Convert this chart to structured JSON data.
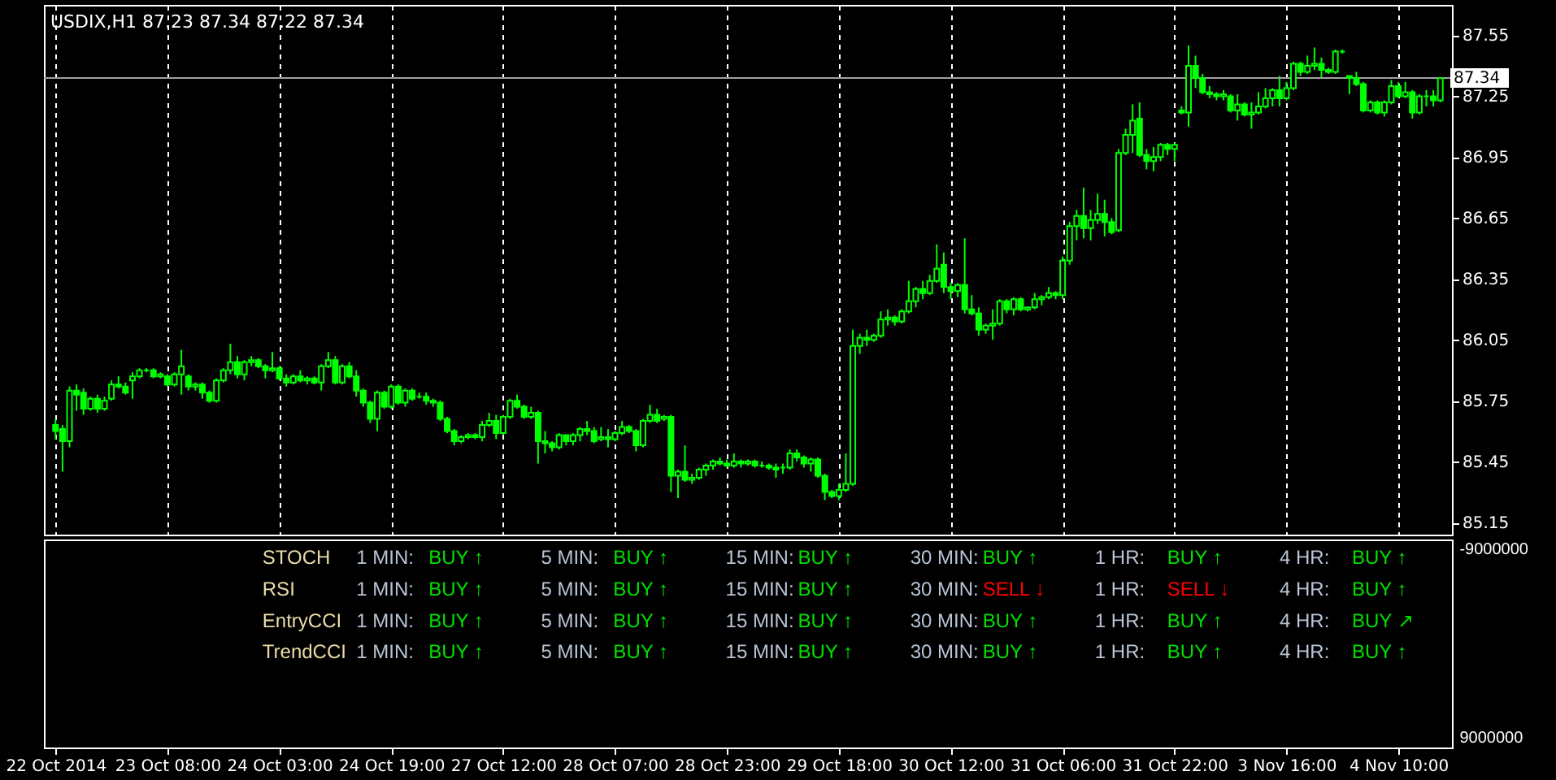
{
  "chart_data": [
    {
      "type": "candlestick",
      "title": "USDIX,H1  87.23 87.34 87.22 87.34",
      "color": "#00ff00",
      "grid": "x",
      "tick_labels": "y",
      "categories": [
        "22 Oct 2014",
        null,
        null,
        null,
        null,
        null,
        null,
        null,
        null,
        null,
        null,
        null,
        null,
        null,
        null,
        null,
        "23 Oct 08:00",
        null,
        null,
        null,
        null,
        null,
        null,
        null,
        null,
        null,
        null,
        null,
        null,
        null,
        null,
        null,
        "24 Oct 03:00",
        null,
        null,
        null,
        null,
        null,
        null,
        null,
        null,
        null,
        null,
        null,
        null,
        null,
        null,
        null,
        "24 Oct 19:00",
        null,
        null,
        null,
        null,
        null,
        null,
        null,
        null,
        null,
        null,
        null,
        null,
        null,
        null,
        null,
        "27 Oct 12:00",
        null,
        null,
        null,
        null,
        null,
        null,
        null,
        null,
        null,
        null,
        null,
        null,
        null,
        null,
        null,
        "28 Oct 07:00",
        null,
        null,
        null,
        null,
        null,
        null,
        null,
        null,
        null,
        null,
        null,
        null,
        null,
        null,
        null,
        "28 Oct 23:00",
        null,
        null,
        null,
        null,
        null,
        null,
        null,
        null,
        null,
        null,
        null,
        null,
        null,
        null,
        null,
        "29 Oct 18:00",
        null,
        null,
        null,
        null,
        null,
        null,
        null,
        null,
        null,
        null,
        null,
        null,
        null,
        null,
        null,
        "30 Oct 12:00",
        null,
        null,
        null,
        null,
        null,
        null,
        null,
        null,
        null,
        null,
        null,
        null,
        null,
        null,
        null,
        "31 Oct 06:00",
        null,
        null,
        null,
        null,
        null,
        null,
        null,
        null,
        null,
        null,
        null,
        null,
        null,
        null,
        null,
        "31 Oct 22:00",
        null,
        null,
        null,
        null,
        null,
        null,
        null,
        null,
        null,
        null,
        null,
        null,
        null,
        null,
        null,
        "3 Nov 16:00",
        null,
        null,
        null,
        null,
        null,
        null,
        null,
        null,
        null,
        null,
        null,
        null,
        null,
        null,
        null,
        "4 Nov 10:00",
        null,
        null,
        null,
        null,
        null,
        null
      ],
      "ohlc": [
        [
          85.63,
          85.66,
          85.56,
          85.6
        ],
        [
          85.61,
          85.63,
          85.4,
          85.55
        ],
        [
          85.55,
          85.82,
          85.52,
          85.8
        ],
        [
          85.8,
          85.83,
          85.7,
          85.78
        ],
        [
          85.79,
          85.81,
          85.68,
          85.71
        ],
        [
          85.71,
          85.77,
          85.7,
          85.76
        ],
        [
          85.76,
          85.78,
          85.69,
          85.71
        ],
        [
          85.71,
          85.77,
          85.7,
          85.75
        ],
        [
          85.76,
          85.85,
          85.75,
          85.83
        ],
        [
          85.83,
          85.87,
          85.81,
          85.82
        ],
        [
          85.82,
          85.84,
          85.78,
          85.79
        ],
        [
          85.85,
          85.89,
          85.76,
          85.87
        ],
        [
          85.87,
          85.91,
          85.86,
          85.9
        ],
        [
          85.9,
          85.91,
          85.89,
          85.9
        ],
        [
          85.9,
          85.91,
          85.86,
          85.87
        ],
        [
          85.87,
          85.89,
          85.86,
          85.88
        ],
        [
          85.87,
          85.88,
          85.82,
          85.83
        ],
        [
          85.83,
          85.89,
          85.82,
          85.88
        ],
        [
          85.88,
          86.0,
          85.78,
          85.92
        ],
        [
          85.87,
          85.88,
          85.8,
          85.82
        ],
        [
          85.82,
          85.84,
          85.8,
          85.83
        ],
        [
          85.83,
          85.84,
          85.76,
          85.79
        ],
        [
          85.79,
          85.8,
          85.74,
          85.75
        ],
        [
          85.75,
          85.86,
          85.74,
          85.85
        ],
        [
          85.85,
          85.91,
          85.84,
          85.9
        ],
        [
          85.9,
          86.03,
          85.88,
          85.94
        ],
        [
          85.94,
          85.97,
          85.86,
          85.88
        ],
        [
          85.88,
          85.95,
          85.85,
          85.94
        ],
        [
          85.94,
          85.97,
          85.92,
          85.95
        ],
        [
          85.95,
          85.96,
          85.91,
          85.92
        ],
        [
          85.92,
          85.93,
          85.86,
          85.9
        ],
        [
          85.9,
          85.99,
          85.89,
          85.91
        ],
        [
          85.91,
          85.92,
          85.85,
          85.86
        ],
        [
          85.86,
          85.88,
          85.82,
          85.84
        ],
        [
          85.84,
          85.88,
          85.83,
          85.87
        ],
        [
          85.87,
          85.9,
          85.84,
          85.85
        ],
        [
          85.85,
          85.87,
          85.83,
          85.86
        ],
        [
          85.86,
          85.87,
          85.83,
          85.84
        ],
        [
          85.84,
          85.93,
          85.8,
          85.92
        ],
        [
          85.92,
          85.99,
          85.91,
          85.95
        ],
        [
          85.95,
          85.97,
          85.83,
          85.84
        ],
        [
          85.84,
          85.93,
          85.83,
          85.92
        ],
        [
          85.92,
          85.94,
          85.86,
          85.87
        ],
        [
          85.87,
          85.9,
          85.77,
          85.8
        ],
        [
          85.8,
          85.81,
          85.72,
          85.74
        ],
        [
          85.74,
          85.75,
          85.64,
          85.66
        ],
        [
          85.66,
          85.8,
          85.6,
          85.79
        ],
        [
          85.79,
          85.8,
          85.71,
          85.72
        ],
        [
          85.72,
          85.83,
          85.71,
          85.82
        ],
        [
          85.82,
          85.83,
          85.73,
          85.74
        ],
        [
          85.74,
          85.81,
          85.72,
          85.8
        ],
        [
          85.8,
          85.81,
          85.75,
          85.76
        ],
        [
          85.77,
          85.79,
          85.76,
          85.77
        ],
        [
          85.77,
          85.79,
          85.73,
          85.75
        ],
        [
          85.75,
          85.76,
          85.72,
          85.74
        ],
        [
          85.74,
          85.75,
          85.65,
          85.66
        ],
        [
          85.66,
          85.67,
          85.59,
          85.6
        ],
        [
          85.6,
          85.61,
          85.53,
          85.55
        ],
        [
          85.55,
          85.58,
          85.54,
          85.57
        ],
        [
          85.57,
          85.59,
          85.56,
          85.58
        ],
        [
          85.58,
          85.59,
          85.56,
          85.57
        ],
        [
          85.57,
          85.65,
          85.55,
          85.63
        ],
        [
          85.63,
          85.69,
          85.62,
          85.65
        ],
        [
          85.65,
          85.68,
          85.56,
          85.59
        ],
        [
          85.59,
          85.68,
          85.58,
          85.67
        ],
        [
          85.67,
          85.76,
          85.66,
          85.75
        ],
        [
          85.75,
          85.78,
          85.71,
          85.72
        ],
        [
          85.72,
          85.73,
          85.66,
          85.67
        ],
        [
          85.67,
          85.72,
          85.66,
          85.69
        ],
        [
          85.69,
          85.7,
          85.44,
          85.55
        ],
        [
          85.55,
          85.6,
          85.49,
          85.54
        ],
        [
          85.54,
          85.55,
          85.5,
          85.52
        ],
        [
          85.52,
          85.59,
          85.51,
          85.58
        ],
        [
          85.58,
          85.58,
          85.53,
          85.55
        ],
        [
          85.55,
          85.59,
          85.53,
          85.58
        ],
        [
          85.58,
          85.62,
          85.55,
          85.61
        ],
        [
          85.61,
          85.65,
          85.58,
          85.6
        ],
        [
          85.6,
          85.62,
          85.54,
          85.55
        ],
        [
          85.56,
          85.62,
          85.55,
          85.57
        ],
        [
          85.57,
          85.61,
          85.52,
          85.56
        ],
        [
          85.56,
          85.6,
          85.55,
          85.59
        ],
        [
          85.59,
          85.65,
          85.58,
          85.62
        ],
        [
          85.62,
          85.63,
          85.59,
          85.6
        ],
        [
          85.6,
          85.61,
          85.5,
          85.53
        ],
        [
          85.53,
          85.66,
          85.52,
          85.65
        ],
        [
          85.65,
          85.73,
          85.64,
          85.68
        ],
        [
          85.68,
          85.71,
          85.64,
          85.65
        ],
        [
          85.66,
          85.68,
          85.65,
          85.67
        ],
        [
          85.67,
          85.68,
          85.3,
          85.38
        ],
        [
          85.38,
          85.41,
          85.27,
          85.4
        ],
        [
          85.4,
          85.53,
          85.35,
          85.36
        ],
        [
          85.36,
          85.39,
          85.34,
          85.37
        ],
        [
          85.37,
          85.42,
          85.36,
          85.41
        ],
        [
          85.41,
          85.44,
          85.38,
          85.43
        ],
        [
          85.43,
          85.46,
          85.41,
          85.45
        ],
        [
          85.45,
          85.47,
          85.43,
          85.44
        ],
        [
          85.44,
          85.46,
          85.42,
          85.43
        ],
        [
          85.43,
          85.49,
          85.42,
          85.45
        ],
        [
          85.45,
          85.46,
          85.42,
          85.44
        ],
        [
          85.44,
          85.46,
          85.43,
          85.45
        ],
        [
          85.45,
          85.46,
          85.42,
          85.43
        ],
        [
          85.43,
          85.45,
          85.42,
          85.43
        ],
        [
          85.43,
          85.44,
          85.41,
          85.42
        ],
        [
          85.42,
          85.44,
          85.37,
          85.41
        ],
        [
          85.42,
          85.44,
          85.39,
          85.42
        ],
        [
          85.42,
          85.51,
          85.41,
          85.49
        ],
        [
          85.49,
          85.51,
          85.45,
          85.47
        ],
        [
          85.47,
          85.48,
          85.42,
          85.44
        ],
        [
          85.44,
          85.47,
          85.4,
          85.46
        ],
        [
          85.46,
          85.47,
          85.37,
          85.38
        ],
        [
          85.38,
          85.39,
          85.26,
          85.3
        ],
        [
          85.3,
          85.31,
          85.27,
          85.28
        ],
        [
          85.28,
          85.34,
          85.26,
          85.31
        ],
        [
          85.31,
          85.49,
          85.3,
          85.34
        ],
        [
          85.34,
          86.1,
          85.33,
          86.02
        ],
        [
          86.02,
          86.08,
          85.98,
          86.06
        ],
        [
          86.06,
          86.1,
          86.02,
          86.05
        ],
        [
          86.05,
          86.08,
          86.04,
          86.07
        ],
        [
          86.07,
          86.19,
          86.06,
          86.15
        ],
        [
          86.15,
          86.2,
          86.12,
          86.16
        ],
        [
          86.16,
          86.17,
          86.12,
          86.14
        ],
        [
          86.14,
          86.2,
          86.13,
          86.19
        ],
        [
          86.19,
          86.34,
          86.18,
          86.24
        ],
        [
          86.24,
          86.31,
          86.21,
          86.3
        ],
        [
          86.3,
          86.34,
          86.25,
          86.28
        ],
        [
          86.28,
          86.37,
          86.27,
          86.34
        ],
        [
          86.34,
          86.52,
          86.33,
          86.4
        ],
        [
          86.42,
          86.48,
          86.28,
          86.31
        ],
        [
          86.31,
          86.33,
          86.25,
          86.29
        ],
        [
          86.29,
          86.33,
          86.26,
          86.32
        ],
        [
          86.32,
          86.55,
          86.18,
          86.2
        ],
        [
          86.2,
          86.27,
          86.17,
          86.18
        ],
        [
          86.18,
          86.21,
          86.07,
          86.1
        ],
        [
          86.1,
          86.13,
          86.08,
          86.12
        ],
        [
          86.12,
          86.2,
          86.05,
          86.13
        ],
        [
          86.13,
          86.25,
          86.12,
          86.24
        ],
        [
          86.24,
          86.25,
          86.18,
          86.2
        ],
        [
          86.2,
          86.26,
          86.17,
          86.25
        ],
        [
          86.25,
          86.26,
          86.19,
          86.2
        ],
        [
          86.2,
          86.21,
          86.19,
          86.21
        ],
        [
          86.21,
          86.28,
          86.2,
          86.25
        ],
        [
          86.25,
          86.27,
          86.22,
          86.26
        ],
        [
          86.26,
          86.31,
          86.25,
          86.28
        ],
        [
          86.28,
          86.29,
          86.25,
          86.27
        ],
        [
          86.27,
          86.46,
          86.25,
          86.44
        ],
        [
          86.44,
          86.63,
          86.42,
          86.61
        ],
        [
          86.61,
          86.69,
          86.54,
          86.66
        ],
        [
          86.66,
          86.8,
          86.55,
          86.6
        ],
        [
          86.6,
          86.69,
          86.54,
          86.64
        ],
        [
          86.64,
          86.77,
          86.62,
          86.67
        ],
        [
          86.67,
          86.74,
          86.56,
          86.63
        ],
        [
          86.63,
          86.65,
          86.57,
          86.58
        ],
        [
          86.59,
          86.99,
          86.58,
          86.97
        ],
        [
          86.97,
          87.09,
          86.96,
          87.06
        ],
        [
          87.06,
          87.21,
          86.97,
          87.13
        ],
        [
          87.14,
          87.22,
          86.95,
          86.96
        ],
        [
          86.96,
          86.99,
          86.89,
          86.93
        ],
        [
          86.93,
          87.0,
          86.88,
          86.95
        ],
        [
          86.95,
          87.02,
          86.93,
          87.01
        ],
        [
          87.01,
          87.02,
          86.96,
          86.99
        ],
        [
          86.99,
          87.02,
          86.93,
          87.01
        ],
        [
          87.18,
          87.2,
          87.16,
          87.17
        ],
        [
          87.17,
          87.5,
          87.1,
          87.4
        ],
        [
          87.4,
          87.45,
          87.29,
          87.34
        ],
        [
          87.34,
          87.36,
          87.26,
          87.27
        ],
        [
          87.27,
          87.3,
          87.24,
          87.26
        ],
        [
          87.26,
          87.27,
          87.23,
          87.25
        ],
        [
          87.25,
          87.28,
          87.23,
          87.26
        ],
        [
          87.25,
          87.26,
          87.17,
          87.18
        ],
        [
          87.18,
          87.26,
          87.13,
          87.21
        ],
        [
          87.21,
          87.22,
          87.15,
          87.16
        ],
        [
          87.16,
          87.22,
          87.09,
          87.17
        ],
        [
          87.17,
          87.27,
          87.16,
          87.2
        ],
        [
          87.2,
          87.29,
          87.19,
          87.24
        ],
        [
          87.24,
          87.29,
          87.2,
          87.28
        ],
        [
          87.28,
          87.35,
          87.2,
          87.24
        ],
        [
          87.24,
          87.32,
          87.23,
          87.29
        ],
        [
          87.29,
          87.42,
          87.28,
          87.41
        ],
        [
          87.41,
          87.42,
          87.35,
          87.37
        ],
        [
          87.37,
          87.45,
          87.36,
          87.4
        ],
        [
          87.4,
          87.49,
          87.38,
          87.41
        ],
        [
          87.41,
          87.44,
          87.34,
          87.38
        ],
        [
          87.38,
          87.39,
          87.36,
          87.37
        ],
        [
          87.37,
          87.48,
          87.36,
          87.47
        ],
        [
          87.47,
          87.48,
          87.46,
          87.47
        ],
        [
          87.35,
          87.35,
          87.26,
          87.34
        ],
        [
          87.34,
          87.37,
          87.3,
          87.31
        ],
        [
          87.31,
          87.32,
          87.17,
          87.18
        ],
        [
          87.18,
          87.23,
          87.17,
          87.22
        ],
        [
          87.22,
          87.23,
          87.16,
          87.17
        ],
        [
          87.17,
          87.23,
          87.15,
          87.22
        ],
        [
          87.22,
          87.33,
          87.21,
          87.3
        ],
        [
          87.3,
          87.32,
          87.24,
          87.25
        ],
        [
          87.25,
          87.32,
          87.24,
          87.27
        ],
        [
          87.27,
          87.28,
          87.14,
          87.17
        ],
        [
          87.17,
          87.26,
          87.16,
          87.25
        ],
        [
          87.25,
          87.28,
          87.2,
          87.25
        ],
        [
          87.25,
          87.28,
          87.2,
          87.23
        ],
        [
          87.23,
          87.34,
          87.22,
          87.34
        ]
      ],
      "ylim": [
        85.09,
        87.7
      ],
      "yticks": [
        85.15,
        85.45,
        85.75,
        86.05,
        86.35,
        86.65,
        86.95,
        87.25,
        87.55
      ],
      "ref_lines": [
        {
          "axis": "y",
          "value": 87.34,
          "label": "87.34",
          "color": "#a0a0a0"
        }
      ]
    },
    {
      "type": "other",
      "annotations": [
        "STOCH",
        "1 MIN:",
        "BUY ↑",
        "5 MIN:",
        "BUY ↑",
        "15 MIN:",
        "BUY ↑",
        "30 MIN:",
        "BUY ↑",
        "1 HR:",
        "BUY ↑",
        "4 HR:",
        "BUY ↑",
        "RSI",
        "1 MIN:",
        "BUY ↑",
        "5 MIN:",
        "BUY ↑",
        "15 MIN:",
        "BUY ↑",
        "30 MIN:",
        "SELL ↓",
        "1 HR:",
        "SELL ↓",
        "4 HR:",
        "BUY ↑",
        "EntryCCI",
        "1 MIN:",
        "BUY ↑",
        "5 MIN:",
        "BUY ↑",
        "15 MIN:",
        "BUY ↑",
        "30 MIN:",
        "BUY ↑",
        "1 HR:",
        "BUY ↑",
        "4 HR:",
        "BUY ↗",
        "TrendCCI",
        "1 MIN:",
        "BUY ↑",
        "5 MIN:",
        "BUY ↑",
        "15 MIN:",
        "BUY ↑",
        "30 MIN:",
        "BUY ↑",
        "1 HR:",
        "BUY ↑",
        "4 HR:",
        "BUY ↑",
        "-9000000",
        "9000000"
      ],
      "colors": [
        "#e8dca8",
        "#b8c4d4",
        "#00e000",
        "#b8c4d4",
        "#00e000",
        "#b8c4d4",
        "#00e000",
        "#b8c4d4",
        "#00e000",
        "#b8c4d4",
        "#00e000",
        "#b8c4d4",
        "#00e000",
        "#e8dca8",
        "#b8c4d4",
        "#00e000",
        "#b8c4d4",
        "#00e000",
        "#b8c4d4",
        "#00e000",
        "#b8c4d4",
        "#ff0000",
        "#b8c4d4",
        "#ff0000",
        "#b8c4d4",
        "#00e000",
        "#e8dca8",
        "#b8c4d4",
        "#00e000",
        "#b8c4d4",
        "#00e000",
        "#b8c4d4",
        "#00e000",
        "#b8c4d4",
        "#00e000",
        "#b8c4d4",
        "#00e000",
        "#b8c4d4",
        "#00e000",
        "#e8dca8",
        "#b8c4d4",
        "#00e000",
        "#b8c4d4",
        "#00e000",
        "#b8c4d4",
        "#00e000",
        "#b8c4d4",
        "#00e000",
        "#b8c4d4",
        "#00e000",
        "#b8c4d4",
        "#00e000",
        "#ffffff",
        "#ffffff"
      ]
    }
  ]
}
